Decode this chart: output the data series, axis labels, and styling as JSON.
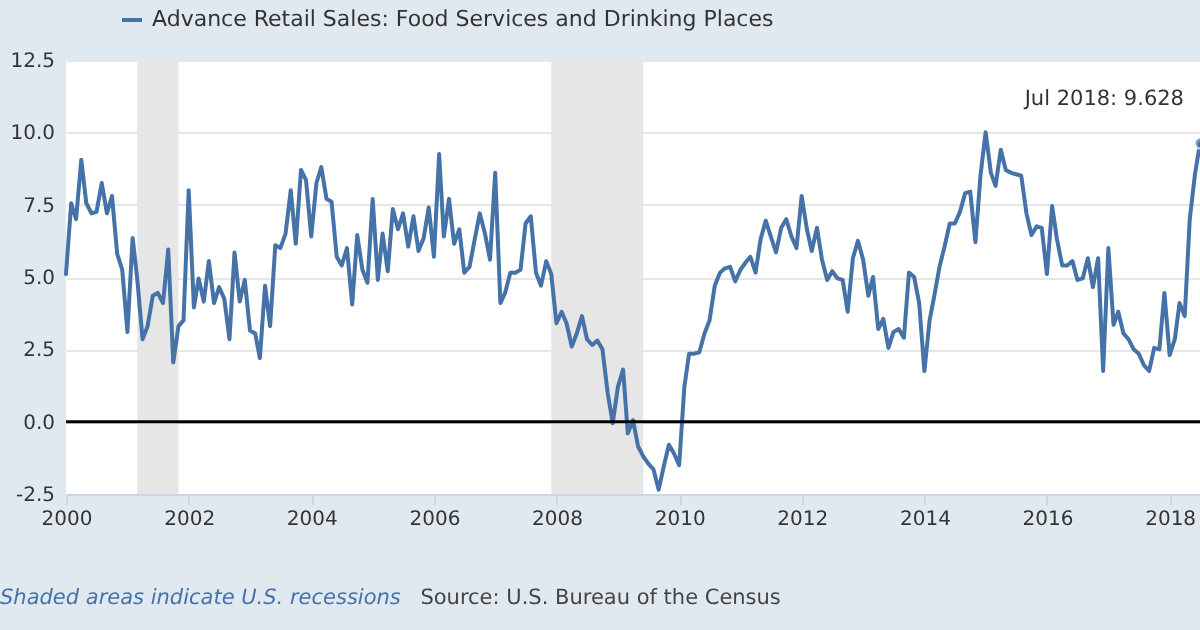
{
  "chart_data": {
    "type": "line",
    "x": [
      "2000-01",
      "2000-02",
      "2000-03",
      "2000-04",
      "2000-05",
      "2000-06",
      "2000-07",
      "2000-08",
      "2000-09",
      "2000-10",
      "2000-11",
      "2000-12",
      "2001-01",
      "2001-02",
      "2001-03",
      "2001-04",
      "2001-05",
      "2001-06",
      "2001-07",
      "2001-08",
      "2001-09",
      "2001-10",
      "2001-11",
      "2001-12",
      "2002-01",
      "2002-02",
      "2002-03",
      "2002-04",
      "2002-05",
      "2002-06",
      "2002-07",
      "2002-08",
      "2002-09",
      "2002-10",
      "2002-11",
      "2002-12",
      "2003-01",
      "2003-02",
      "2003-03",
      "2003-04",
      "2003-05",
      "2003-06",
      "2003-07",
      "2003-08",
      "2003-09",
      "2003-10",
      "2003-11",
      "2003-12",
      "2004-01",
      "2004-02",
      "2004-03",
      "2004-04",
      "2004-05",
      "2004-06",
      "2004-07",
      "2004-08",
      "2004-09",
      "2004-10",
      "2004-11",
      "2004-12",
      "2005-01",
      "2005-02",
      "2005-03",
      "2005-04",
      "2005-05",
      "2005-06",
      "2005-07",
      "2005-08",
      "2005-09",
      "2005-10",
      "2005-11",
      "2005-12",
      "2006-01",
      "2006-02",
      "2006-03",
      "2006-04",
      "2006-05",
      "2006-06",
      "2006-07",
      "2006-08",
      "2006-09",
      "2006-10",
      "2006-11",
      "2006-12",
      "2007-01",
      "2007-02",
      "2007-03",
      "2007-04",
      "2007-05",
      "2007-06",
      "2007-07",
      "2007-08",
      "2007-09",
      "2007-10",
      "2007-11",
      "2007-12",
      "2008-01",
      "2008-02",
      "2008-03",
      "2008-04",
      "2008-05",
      "2008-06",
      "2008-07",
      "2008-08",
      "2008-09",
      "2008-10",
      "2008-11",
      "2008-12",
      "2009-01",
      "2009-02",
      "2009-03",
      "2009-04",
      "2009-05",
      "2009-06",
      "2009-07",
      "2009-08",
      "2009-09",
      "2009-10",
      "2009-11",
      "2009-12",
      "2010-01",
      "2010-02",
      "2010-03",
      "2010-04",
      "2010-05",
      "2010-06",
      "2010-07",
      "2010-08",
      "2010-09",
      "2010-10",
      "2010-11",
      "2010-12",
      "2011-01",
      "2011-02",
      "2011-03",
      "2011-04",
      "2011-05",
      "2011-06",
      "2011-07",
      "2011-08",
      "2011-09",
      "2011-10",
      "2011-11",
      "2011-12",
      "2012-01",
      "2012-02",
      "2012-03",
      "2012-04",
      "2012-05",
      "2012-06",
      "2012-07",
      "2012-08",
      "2012-09",
      "2012-10",
      "2012-11",
      "2012-12",
      "2013-01",
      "2013-02",
      "2013-03",
      "2013-04",
      "2013-05",
      "2013-06",
      "2013-07",
      "2013-08",
      "2013-09",
      "2013-10",
      "2013-11",
      "2013-12",
      "2014-01",
      "2014-02",
      "2014-03",
      "2014-04",
      "2014-05",
      "2014-06",
      "2014-07",
      "2014-08",
      "2014-09",
      "2014-10",
      "2014-11",
      "2014-12",
      "2015-01",
      "2015-02",
      "2015-03",
      "2015-04",
      "2015-05",
      "2015-06",
      "2015-07",
      "2015-08",
      "2015-09",
      "2015-10",
      "2015-11",
      "2015-12",
      "2016-01",
      "2016-02",
      "2016-03",
      "2016-04",
      "2016-05",
      "2016-06",
      "2016-07",
      "2016-08",
      "2016-09",
      "2016-10",
      "2016-11",
      "2016-12",
      "2017-01",
      "2017-02",
      "2017-03",
      "2017-04",
      "2017-05",
      "2017-06",
      "2017-07",
      "2017-08",
      "2017-09",
      "2017-10",
      "2017-11",
      "2017-12",
      "2018-01",
      "2018-02",
      "2018-03",
      "2018-04",
      "2018-05",
      "2018-06",
      "2018-07"
    ],
    "series": [
      {
        "name": "Advance Retail Sales: Food Services and Drinking Places",
        "color": "#4572a7",
        "values": [
          5.1,
          7.55,
          7.0,
          9.05,
          7.55,
          7.2,
          7.25,
          8.25,
          7.2,
          7.8,
          5.8,
          5.25,
          3.1,
          6.35,
          4.9,
          2.85,
          3.3,
          4.35,
          4.45,
          4.1,
          5.95,
          2.05,
          3.3,
          3.5,
          8.0,
          3.95,
          4.95,
          4.15,
          5.55,
          4.1,
          4.65,
          4.25,
          2.85,
          5.85,
          4.15,
          4.9,
          3.15,
          3.05,
          2.2,
          4.7,
          3.3,
          6.1,
          6.0,
          6.5,
          8.0,
          6.15,
          8.7,
          8.35,
          6.4,
          8.25,
          8.8,
          7.7,
          7.6,
          5.7,
          5.4,
          6.0,
          4.05,
          6.45,
          5.25,
          4.8,
          7.7,
          4.9,
          6.5,
          5.2,
          7.35,
          6.65,
          7.2,
          6.05,
          7.1,
          5.9,
          6.35,
          7.4,
          5.7,
          9.25,
          6.4,
          7.7,
          6.15,
          6.65,
          5.15,
          5.35,
          6.3,
          7.2,
          6.5,
          5.6,
          8.6,
          4.1,
          4.45,
          5.15,
          5.15,
          5.25,
          6.85,
          7.1,
          5.15,
          4.7,
          5.55,
          5.1,
          3.4,
          3.8,
          3.4,
          2.6,
          3.05,
          3.65,
          2.85,
          2.65,
          2.8,
          2.5,
          1.0,
          -0.05,
          1.2,
          1.8,
          -0.4,
          0.05,
          -0.85,
          -1.2,
          -1.45,
          -1.65,
          -2.35,
          -1.55,
          -0.8,
          -1.1,
          -1.5,
          1.2,
          2.35,
          2.35,
          2.4,
          3.05,
          3.5,
          4.7,
          5.15,
          5.3,
          5.35,
          4.85,
          5.25,
          5.5,
          5.7,
          5.15,
          6.3,
          6.95,
          6.4,
          5.85,
          6.7,
          7.0,
          6.4,
          6.0,
          7.8,
          6.65,
          5.9,
          6.7,
          5.6,
          4.9,
          5.2,
          4.95,
          4.9,
          3.8,
          5.65,
          6.25,
          5.6,
          4.35,
          5.0,
          3.2,
          3.55,
          2.55,
          3.1,
          3.2,
          2.9,
          5.15,
          5.0,
          4.1,
          1.75,
          3.5,
          4.35,
          5.35,
          6.05,
          6.85,
          6.85,
          7.25,
          7.9,
          7.95,
          6.2,
          8.5,
          10.0,
          8.6,
          8.15,
          9.4,
          8.7,
          8.6,
          8.55,
          8.5,
          7.2,
          6.45,
          6.75,
          6.7,
          5.1,
          7.45,
          6.3,
          5.4,
          5.4,
          5.55,
          4.9,
          4.95,
          5.65,
          4.65,
          5.65,
          1.75,
          6.0,
          3.35,
          3.8,
          3.05,
          2.85,
          2.5,
          2.35,
          1.95,
          1.75,
          2.55,
          2.5,
          4.45,
          2.3,
          2.85,
          4.1,
          3.65,
          7.0,
          8.55,
          9.628
        ]
      }
    ],
    "xlim": [
      "2000-01",
      "2018-07"
    ],
    "xticks": [
      "2000",
      "2002",
      "2004",
      "2006",
      "2008",
      "2010",
      "2012",
      "2014",
      "2016",
      "2018"
    ],
    "ylim": [
      -2.5,
      12.5
    ],
    "yticks": [
      {
        "value": -2.5,
        "label": "-2.5"
      },
      {
        "value": 0,
        "label": "0.0"
      },
      {
        "value": 2.5,
        "label": "2.5"
      },
      {
        "value": 5,
        "label": "5.0"
      },
      {
        "value": 7.5,
        "label": "7.5"
      },
      {
        "value": 10,
        "label": "10.0"
      },
      {
        "value": 12.5,
        "label": "12.5"
      }
    ],
    "bands": [
      {
        "axis": "x",
        "from": "2001-03",
        "to": "2001-11",
        "color": "#e6e6e6"
      },
      {
        "axis": "x",
        "from": "2007-12",
        "to": "2009-06",
        "color": "#e6e6e6"
      }
    ],
    "ref_lines": [
      {
        "axis": "y",
        "value": 0,
        "color": "#000000"
      }
    ],
    "annotations": [
      {
        "text": "Jul 2018: 9.628",
        "x": "2018-07",
        "y": 9.628
      },
      "Shaded areas indicate U.S. recessions",
      "Source: U.S. Bureau of the Census"
    ],
    "grid": "y",
    "legend": "top left"
  }
}
